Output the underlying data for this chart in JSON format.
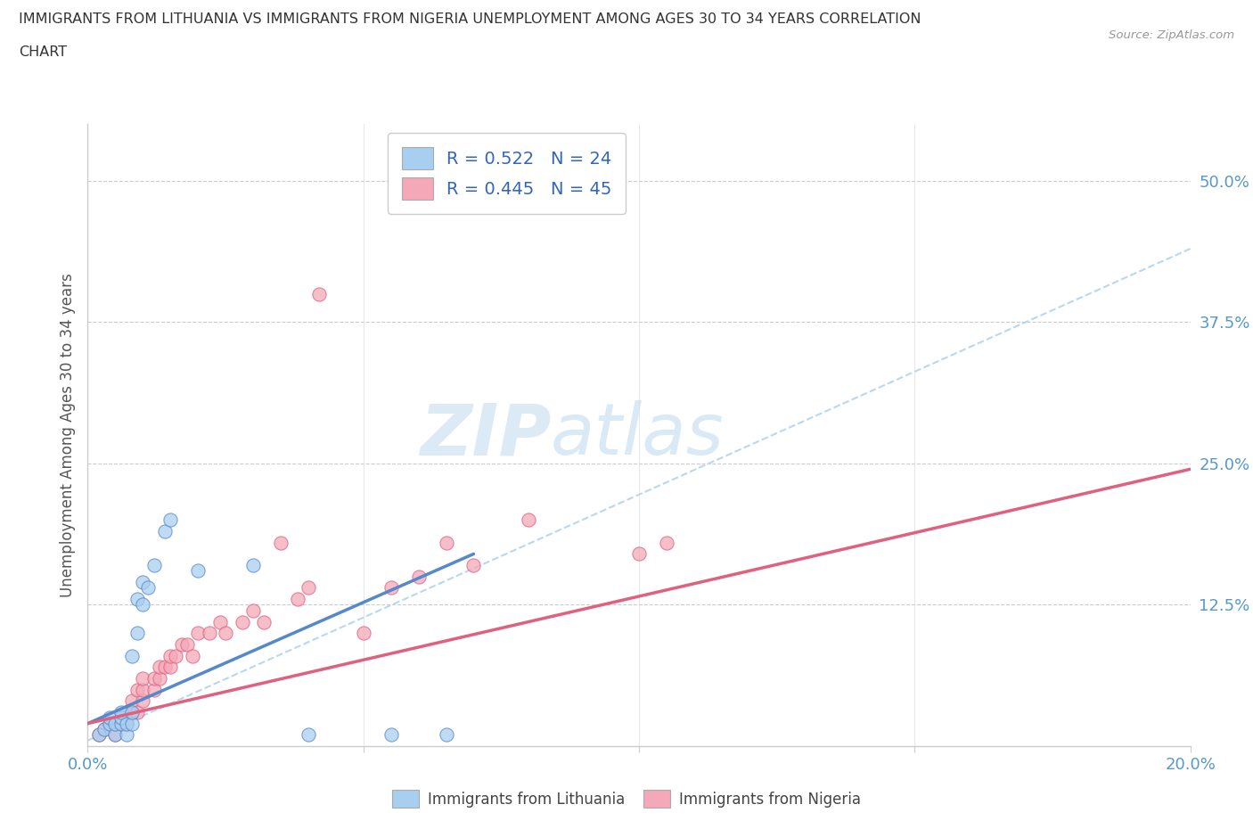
{
  "title_line1": "IMMIGRANTS FROM LITHUANIA VS IMMIGRANTS FROM NIGERIA UNEMPLOYMENT AMONG AGES 30 TO 34 YEARS CORRELATION",
  "title_line2": "CHART",
  "source": "Source: ZipAtlas.com",
  "ylabel": "Unemployment Among Ages 30 to 34 years",
  "xlim": [
    0.0,
    0.2
  ],
  "ylim": [
    0.0,
    0.55
  ],
  "yticks": [
    0.0,
    0.125,
    0.25,
    0.375,
    0.5
  ],
  "ytick_labels": [
    "",
    "12.5%",
    "25.0%",
    "37.5%",
    "50.0%"
  ],
  "color_lithuania": "#a8cff0",
  "color_nigeria": "#f4a8b8",
  "color_line_lithuania": "#5588cc",
  "color_line_nigeria": "#e06080",
  "color_dashed_line": "#b8d8f0",
  "watermark_zip": "ZIP",
  "watermark_atlas": "atlas",
  "lithuania_x": [
    0.002,
    0.003,
    0.004,
    0.004,
    0.005,
    0.005,
    0.006,
    0.006,
    0.006,
    0.007,
    0.007,
    0.008,
    0.008,
    0.008,
    0.009,
    0.009,
    0.01,
    0.01,
    0.011,
    0.012,
    0.014,
    0.015,
    0.02,
    0.03,
    0.04,
    0.055,
    0.065
  ],
  "lithuania_y": [
    0.01,
    0.015,
    0.02,
    0.025,
    0.01,
    0.02,
    0.02,
    0.025,
    0.03,
    0.01,
    0.02,
    0.02,
    0.03,
    0.08,
    0.1,
    0.13,
    0.125,
    0.145,
    0.14,
    0.16,
    0.19,
    0.2,
    0.155,
    0.16,
    0.01,
    0.01,
    0.01
  ],
  "nigeria_x": [
    0.002,
    0.003,
    0.004,
    0.005,
    0.005,
    0.006,
    0.007,
    0.007,
    0.008,
    0.008,
    0.009,
    0.009,
    0.01,
    0.01,
    0.01,
    0.012,
    0.012,
    0.013,
    0.013,
    0.014,
    0.015,
    0.015,
    0.016,
    0.017,
    0.018,
    0.019,
    0.02,
    0.022,
    0.024,
    0.025,
    0.028,
    0.03,
    0.032,
    0.035,
    0.038,
    0.04,
    0.042,
    0.05,
    0.055,
    0.06,
    0.065,
    0.07,
    0.08,
    0.1,
    0.105
  ],
  "nigeria_y": [
    0.01,
    0.015,
    0.02,
    0.01,
    0.02,
    0.02,
    0.02,
    0.03,
    0.03,
    0.04,
    0.03,
    0.05,
    0.04,
    0.05,
    0.06,
    0.05,
    0.06,
    0.06,
    0.07,
    0.07,
    0.07,
    0.08,
    0.08,
    0.09,
    0.09,
    0.08,
    0.1,
    0.1,
    0.11,
    0.1,
    0.11,
    0.12,
    0.11,
    0.18,
    0.13,
    0.14,
    0.4,
    0.1,
    0.14,
    0.15,
    0.18,
    0.16,
    0.2,
    0.17,
    0.18
  ],
  "lith_line_x0": 0.0,
  "lith_line_y0": 0.02,
  "lith_line_x1": 0.07,
  "lith_line_y1": 0.17,
  "nig_line_x0": 0.0,
  "nig_line_y0": 0.02,
  "nig_line_x1": 0.2,
  "nig_line_y1": 0.245,
  "dash_line_x0": 0.0,
  "dash_line_y0": 0.005,
  "dash_line_x1": 0.2,
  "dash_line_y1": 0.44
}
